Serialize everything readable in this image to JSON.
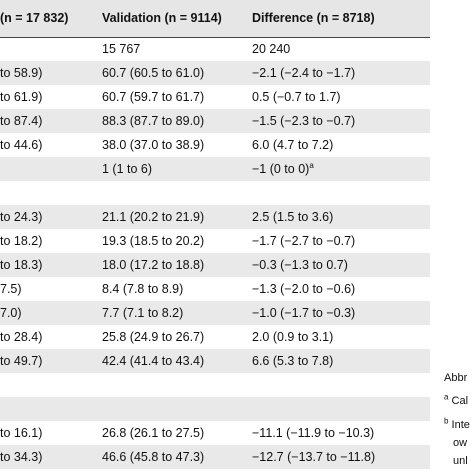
{
  "table": {
    "headers": [
      "(n = 17 832)",
      "Validation (n = 9114)",
      "Difference (n = 8718)"
    ],
    "rows": [
      {
        "c0": "",
        "c1": "15 767",
        "c2": "20 240",
        "shaded": false
      },
      {
        "c0": "to 58.9)",
        "c1": "60.7 (60.5 to 61.0)",
        "c2": "−2.1 (−2.4 to −1.7)",
        "shaded": true
      },
      {
        "c0": "to 61.9)",
        "c1": "60.7 (59.7 to 61.7)",
        "c2": "0.5 (−0.7 to 1.7)",
        "shaded": false
      },
      {
        "c0": "to 87.4)",
        "c1": "88.3 (87.7 to 89.0)",
        "c2": "−1.5 (−2.3 to −0.7)",
        "shaded": true
      },
      {
        "c0": "to 44.6)",
        "c1": "38.0 (37.0 to 38.9)",
        "c2": "6.0 (4.7 to 7.2)",
        "shaded": false
      },
      {
        "c0": "",
        "c1": "1 (1 to 6)",
        "c2": "−1 (0 to 0)",
        "c2sup": "a",
        "shaded": true
      },
      {
        "c0": "",
        "c1": "",
        "c2": "",
        "shaded": false
      },
      {
        "c0": "to 24.3)",
        "c1": "21.1 (20.2 to 21.9)",
        "c2": "2.5 (1.5 to 3.6)",
        "shaded": true
      },
      {
        "c0": "to 18.2)",
        "c1": "19.3 (18.5 to 20.2)",
        "c2": "−1.7 (−2.7 to −0.7)",
        "shaded": false
      },
      {
        "c0": "to 18.3)",
        "c1": "18.0 (17.2 to 18.8)",
        "c2": "−0.3 (−1.3 to 0.7)",
        "shaded": true
      },
      {
        "c0": "7.5)",
        "c1": "8.4 (7.8 to 8.9)",
        "c2": "−1.3 (−2.0 to −0.6)",
        "shaded": false
      },
      {
        "c0": "7.0)",
        "c1": "7.7 (7.1 to 8.2)",
        "c2": "−1.0 (−1.7 to −0.3)",
        "shaded": true
      },
      {
        "c0": "to 28.4)",
        "c1": "25.8 (24.9 to 26.7)",
        "c2": "2.0 (0.9 to 3.1)",
        "shaded": false
      },
      {
        "c0": "to 49.7)",
        "c1": "42.4 (41.4 to 43.4)",
        "c2": "6.6 (5.3 to 7.8)",
        "shaded": true
      },
      {
        "c0": "",
        "c1": "",
        "c2": "",
        "shaded": false
      },
      {
        "c0": "",
        "c1": "",
        "c2": "",
        "shaded": true
      },
      {
        "c0": "to 16.1)",
        "c1": "26.8 (26.1 to 27.5)",
        "c2": "−11.1 (−11.9 to −10.3)",
        "shaded": false
      },
      {
        "c0": "to 34.3)",
        "c1": "46.6 (45.8 to 47.3)",
        "c2": "−12.7 (−13.7 to −11.8)",
        "shaded": true
      }
    ]
  },
  "notes": {
    "abbr": "Abbr",
    "a": "Cal",
    "b1": "Inte",
    "b2": "ow",
    "b3": "unl"
  }
}
